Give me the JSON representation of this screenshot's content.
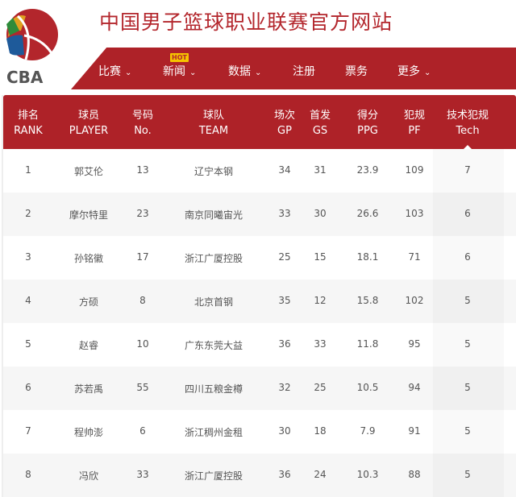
{
  "header": {
    "title": "中国男子篮球职业联赛官方网站",
    "logo_text": "CBA"
  },
  "nav": {
    "items": [
      {
        "label": "比赛",
        "dropdown": true
      },
      {
        "label": "新闻",
        "dropdown": true,
        "badge": "HOT"
      },
      {
        "label": "数据",
        "dropdown": true
      },
      {
        "label": "注册",
        "dropdown": false
      },
      {
        "label": "票务",
        "dropdown": false
      },
      {
        "label": "更多",
        "dropdown": true
      }
    ],
    "chevron": "⌄"
  },
  "colors": {
    "brand_red": "#ae2228",
    "hot_badge": "#f5c400"
  },
  "table": {
    "columns": [
      {
        "cn": "排名",
        "en": "RANK"
      },
      {
        "cn": "球员",
        "en": "PLAYER"
      },
      {
        "cn": "号码",
        "en": "No."
      },
      {
        "cn": "球队",
        "en": "TEAM"
      },
      {
        "cn": "场次",
        "en": "GP"
      },
      {
        "cn": "首发",
        "en": "GS"
      },
      {
        "cn": "得分",
        "en": "PPG"
      },
      {
        "cn": "犯规",
        "en": "PF"
      },
      {
        "cn": "技术犯规",
        "en": "Tech"
      }
    ],
    "sorted_column": "Tech",
    "rows": [
      [
        "1",
        "郭艾伦",
        "13",
        "辽宁本钢",
        "34",
        "31",
        "23.9",
        "109",
        "7"
      ],
      [
        "2",
        "摩尔特里",
        "23",
        "南京同曦宙光",
        "33",
        "30",
        "26.6",
        "103",
        "6"
      ],
      [
        "3",
        "孙铭徽",
        "17",
        "浙江广厦控股",
        "25",
        "15",
        "18.1",
        "71",
        "6"
      ],
      [
        "4",
        "方硕",
        "8",
        "北京首钢",
        "35",
        "12",
        "15.8",
        "102",
        "5"
      ],
      [
        "5",
        "赵睿",
        "10",
        "广东东莞大益",
        "36",
        "33",
        "11.8",
        "95",
        "5"
      ],
      [
        "6",
        "苏若禹",
        "55",
        "四川五粮金樽",
        "32",
        "25",
        "10.5",
        "94",
        "5"
      ],
      [
        "7",
        "程帅澎",
        "6",
        "浙江稠州金租",
        "30",
        "18",
        "7.9",
        "91",
        "5"
      ],
      [
        "8",
        "冯欣",
        "33",
        "浙江广厦控股",
        "36",
        "24",
        "10.3",
        "88",
        "5"
      ]
    ]
  }
}
